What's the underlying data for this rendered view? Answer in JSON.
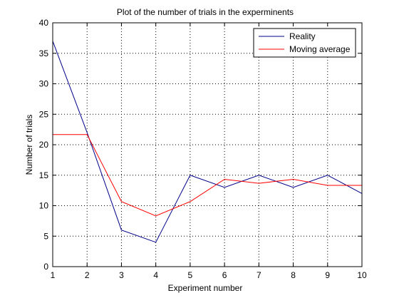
{
  "chart_data": {
    "type": "line",
    "title": "Plot of the number of trials in the experminents",
    "xlabel": "Experiment number",
    "ylabel": "Number of trials",
    "xlim": [
      1,
      10
    ],
    "ylim": [
      0,
      40
    ],
    "xticks": [
      1,
      2,
      3,
      4,
      5,
      6,
      7,
      8,
      9,
      10
    ],
    "yticks": [
      0,
      5,
      10,
      15,
      20,
      25,
      30,
      35,
      40
    ],
    "grid": true,
    "legend_position": "top-right",
    "x": [
      1,
      2,
      3,
      4,
      5,
      6,
      7,
      8,
      9,
      10
    ],
    "series": [
      {
        "name": "Reality",
        "color": "#00008b",
        "values": [
          37,
          22,
          6,
          4,
          15,
          13,
          15,
          13,
          15,
          12
        ]
      },
      {
        "name": "Moving average",
        "color": "#ff0000",
        "values": [
          21.67,
          21.67,
          10.67,
          8.33,
          10.67,
          14.33,
          13.67,
          14.33,
          13.33,
          13.33
        ]
      }
    ]
  }
}
